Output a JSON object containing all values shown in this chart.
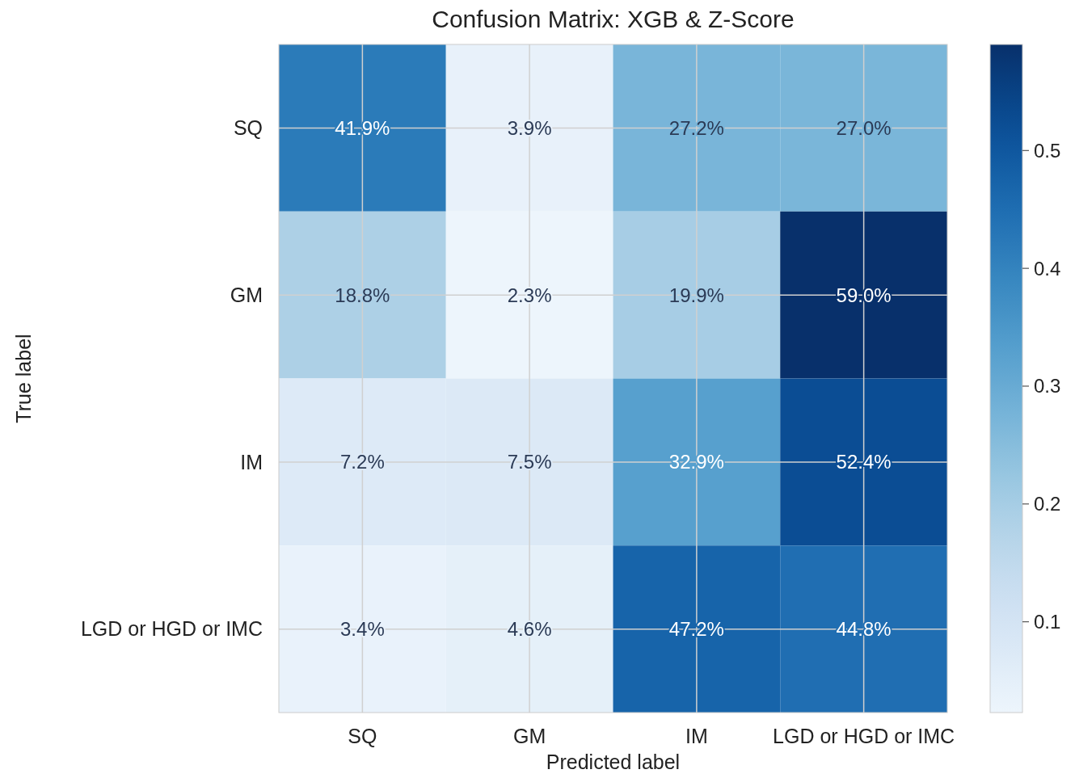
{
  "chart_data": {
    "type": "heatmap",
    "title": "Confusion Matrix: XGB & Z-Score",
    "xlabel": "Predicted label",
    "ylabel": "True label",
    "categories": [
      "SQ",
      "GM",
      "IM",
      "LGD or HGD or IMC"
    ],
    "y_categories": [
      "SQ",
      "GM",
      "IM",
      "LGD or HGD or IMC"
    ],
    "cells": [
      [
        0.419,
        0.039,
        0.272,
        0.27
      ],
      [
        0.188,
        0.023,
        0.199,
        0.59
      ],
      [
        0.072,
        0.075,
        0.329,
        0.524
      ],
      [
        0.034,
        0.046,
        0.472,
        0.448
      ]
    ],
    "cell_labels": [
      [
        "41.9%",
        "3.9%",
        "27.2%",
        "27.0%"
      ],
      [
        "18.8%",
        "2.3%",
        "19.9%",
        "59.0%"
      ],
      [
        "7.2%",
        "7.5%",
        "32.9%",
        "52.4%"
      ],
      [
        "3.4%",
        "4.6%",
        "47.2%",
        "44.8%"
      ]
    ],
    "clim": [
      0.023,
      0.59
    ],
    "cticks": [
      0.1,
      0.2,
      0.3,
      0.4,
      0.5
    ],
    "grid": true
  }
}
